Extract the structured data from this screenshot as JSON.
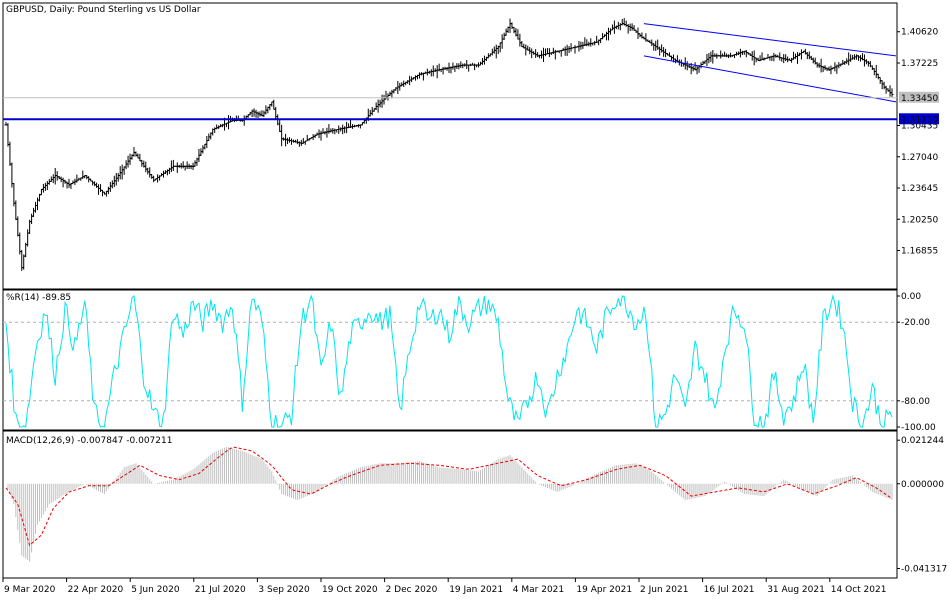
{
  "chart_data": {
    "type": "ohlc",
    "symbol_header": "GBPUSD, Daily:  Pound Sterling vs US Dollar",
    "price_axis_ticks": [
      "1.40620",
      "1.37225",
      "1.30435",
      "1.27040",
      "1.23645",
      "1.20250",
      "1.16855"
    ],
    "current_price_label": "1.33450",
    "current_price": 1.3345,
    "support_level_label": "1.31110",
    "support_level": 1.3111,
    "price_ylim": [
      1.13,
      1.432
    ],
    "x_axis_labels": [
      "9 Mar 2020",
      "22 Apr 2020",
      "5 Jun 2020",
      "21 Jul 2020",
      "3 Sep 2020",
      "19 Oct 2020",
      "2 Dec 2020",
      "19 Jan 2021",
      "4 Mar 2021",
      "19 Apr 2021",
      "2 Jun 2021",
      "16 Jul 2021",
      "31 Aug 2021",
      "14 Oct 2021"
    ],
    "price_path": [
      [
        0,
        1.305
      ],
      [
        4,
        1.22
      ],
      [
        8,
        1.15
      ],
      [
        12,
        1.2
      ],
      [
        18,
        1.235
      ],
      [
        25,
        1.25
      ],
      [
        32,
        1.24
      ],
      [
        40,
        1.25
      ],
      [
        50,
        1.23
      ],
      [
        57,
        1.25
      ],
      [
        65,
        1.275
      ],
      [
        75,
        1.245
      ],
      [
        85,
        1.26
      ],
      [
        95,
        1.26
      ],
      [
        105,
        1.3
      ],
      [
        115,
        1.31
      ],
      [
        120,
        1.31
      ],
      [
        125,
        1.32
      ],
      [
        130,
        1.315
      ],
      [
        135,
        1.33
      ],
      [
        140,
        1.29
      ],
      [
        150,
        1.285
      ],
      [
        158,
        1.295
      ],
      [
        168,
        1.3
      ],
      [
        180,
        1.305
      ],
      [
        188,
        1.325
      ],
      [
        198,
        1.345
      ],
      [
        210,
        1.36
      ],
      [
        220,
        1.365
      ],
      [
        232,
        1.37
      ],
      [
        240,
        1.37
      ],
      [
        250,
        1.39
      ],
      [
        256,
        1.415
      ],
      [
        262,
        1.39
      ],
      [
        270,
        1.38
      ],
      [
        280,
        1.385
      ],
      [
        290,
        1.39
      ],
      [
        300,
        1.395
      ],
      [
        308,
        1.41
      ],
      [
        313,
        1.415
      ],
      [
        318,
        1.41
      ],
      [
        323,
        1.4
      ],
      [
        330,
        1.39
      ],
      [
        340,
        1.375
      ],
      [
        350,
        1.365
      ],
      [
        358,
        1.38
      ],
      [
        368,
        1.38
      ],
      [
        375,
        1.385
      ],
      [
        382,
        1.375
      ],
      [
        390,
        1.38
      ],
      [
        398,
        1.375
      ],
      [
        405,
        1.385
      ],
      [
        412,
        1.37
      ],
      [
        418,
        1.365
      ],
      [
        425,
        1.372
      ],
      [
        432,
        1.38
      ],
      [
        438,
        1.372
      ],
      [
        442,
        1.36
      ],
      [
        446,
        1.346
      ],
      [
        450,
        1.338
      ]
    ],
    "price_channel": {
      "upper": [
        [
          324,
          1.415
        ],
        [
          450,
          1.38
        ]
      ],
      "lower": [
        [
          324,
          1.38
        ],
        [
          450,
          1.33
        ]
      ]
    },
    "williams_r": {
      "label": "%R(14) -89.85",
      "last_value": -89.85,
      "ticks": [
        "0.00",
        "-20.00",
        "-80.00",
        "-100.00"
      ],
      "levels": [
        -20,
        -80
      ],
      "path": [
        [
          0,
          -20
        ],
        [
          5,
          -95
        ],
        [
          10,
          -100
        ],
        [
          15,
          -40
        ],
        [
          20,
          -10
        ],
        [
          25,
          -60
        ],
        [
          30,
          -10
        ],
        [
          35,
          -40
        ],
        [
          40,
          -5
        ],
        [
          45,
          -90
        ],
        [
          50,
          -100
        ],
        [
          55,
          -60
        ],
        [
          60,
          -30
        ],
        [
          65,
          0
        ],
        [
          70,
          -60
        ],
        [
          75,
          -90
        ],
        [
          80,
          -95
        ],
        [
          85,
          -10
        ],
        [
          90,
          -30
        ],
        [
          95,
          -5
        ],
        [
          100,
          -20
        ],
        [
          105,
          -5
        ],
        [
          110,
          -20
        ],
        [
          115,
          -5
        ],
        [
          120,
          -80
        ],
        [
          125,
          0
        ],
        [
          130,
          -20
        ],
        [
          135,
          -95
        ],
        [
          140,
          -100
        ],
        [
          145,
          -90
        ],
        [
          150,
          -20
        ],
        [
          155,
          0
        ],
        [
          160,
          -60
        ],
        [
          165,
          -20
        ],
        [
          170,
          -80
        ],
        [
          175,
          -30
        ],
        [
          180,
          -20
        ],
        [
          185,
          -10
        ],
        [
          190,
          -20
        ],
        [
          195,
          -15
        ],
        [
          200,
          -90
        ],
        [
          205,
          -40
        ],
        [
          210,
          -5
        ],
        [
          215,
          -20
        ],
        [
          220,
          -10
        ],
        [
          225,
          -30
        ],
        [
          230,
          -5
        ],
        [
          235,
          -20
        ],
        [
          240,
          -10
        ],
        [
          245,
          -5
        ],
        [
          250,
          -20
        ],
        [
          255,
          -80
        ],
        [
          260,
          -100
        ],
        [
          265,
          -80
        ],
        [
          270,
          -60
        ],
        [
          275,
          -90
        ],
        [
          280,
          -60
        ],
        [
          285,
          -40
        ],
        [
          290,
          -10
        ],
        [
          295,
          -20
        ],
        [
          300,
          -40
        ],
        [
          305,
          -15
        ],
        [
          310,
          0
        ],
        [
          315,
          -5
        ],
        [
          320,
          -20
        ],
        [
          325,
          -10
        ],
        [
          330,
          -100
        ],
        [
          335,
          -90
        ],
        [
          340,
          -60
        ],
        [
          345,
          -90
        ],
        [
          350,
          -40
        ],
        [
          355,
          -60
        ],
        [
          360,
          -90
        ],
        [
          365,
          -40
        ],
        [
          370,
          -10
        ],
        [
          375,
          -20
        ],
        [
          380,
          -90
        ],
        [
          385,
          -100
        ],
        [
          390,
          -60
        ],
        [
          395,
          -90
        ],
        [
          400,
          -80
        ],
        [
          405,
          -50
        ],
        [
          410,
          -95
        ],
        [
          415,
          -20
        ],
        [
          420,
          0
        ],
        [
          425,
          -20
        ],
        [
          430,
          -80
        ],
        [
          435,
          -100
        ],
        [
          440,
          -70
        ],
        [
          445,
          -100
        ],
        [
          450,
          -89.85
        ]
      ]
    },
    "macd": {
      "label": "MACD(12,26,9) -0.007847 -0.007211",
      "main_last": -0.007847,
      "signal_last": -0.007211,
      "ticks": [
        "0.021244",
        "0.000000",
        "-0.041317"
      ],
      "ylim": [
        -0.0445,
        0.0228
      ],
      "histogram": [
        [
          0,
          0.0
        ],
        [
          4,
          -0.01
        ],
        [
          8,
          -0.035
        ],
        [
          12,
          -0.038
        ],
        [
          16,
          -0.02
        ],
        [
          22,
          -0.01
        ],
        [
          30,
          -0.005
        ],
        [
          40,
          0.0
        ],
        [
          50,
          -0.005
        ],
        [
          60,
          0.008
        ],
        [
          66,
          0.01
        ],
        [
          75,
          0.0
        ],
        [
          85,
          0.002
        ],
        [
          95,
          0.007
        ],
        [
          105,
          0.015
        ],
        [
          112,
          0.018
        ],
        [
          120,
          0.016
        ],
        [
          130,
          0.012
        ],
        [
          135,
          0.006
        ],
        [
          140,
          -0.005
        ],
        [
          148,
          -0.008
        ],
        [
          158,
          -0.004
        ],
        [
          168,
          0.003
        ],
        [
          180,
          0.008
        ],
        [
          190,
          0.01
        ],
        [
          200,
          0.01
        ],
        [
          210,
          0.011
        ],
        [
          220,
          0.008
        ],
        [
          232,
          0.007
        ],
        [
          240,
          0.006
        ],
        [
          250,
          0.012
        ],
        [
          256,
          0.014
        ],
        [
          262,
          0.008
        ],
        [
          270,
          0.0
        ],
        [
          280,
          -0.004
        ],
        [
          290,
          0.0
        ],
        [
          300,
          0.005
        ],
        [
          310,
          0.009
        ],
        [
          320,
          0.01
        ],
        [
          328,
          0.006
        ],
        [
          335,
          0.0
        ],
        [
          345,
          -0.008
        ],
        [
          355,
          -0.006
        ],
        [
          365,
          0.001
        ],
        [
          375,
          -0.005
        ],
        [
          385,
          -0.006
        ],
        [
          395,
          0.002
        ],
        [
          405,
          -0.003
        ],
        [
          412,
          -0.006
        ],
        [
          420,
          0.002
        ],
        [
          430,
          0.004
        ],
        [
          440,
          -0.004
        ],
        [
          450,
          -0.007847
        ]
      ],
      "signal": [
        [
          0,
          -0.002
        ],
        [
          6,
          -0.01
        ],
        [
          12,
          -0.03
        ],
        [
          18,
          -0.025
        ],
        [
          24,
          -0.012
        ],
        [
          32,
          -0.004
        ],
        [
          42,
          -0.001
        ],
        [
          52,
          -0.001
        ],
        [
          60,
          0.004
        ],
        [
          68,
          0.009
        ],
        [
          78,
          0.004
        ],
        [
          88,
          0.002
        ],
        [
          98,
          0.005
        ],
        [
          108,
          0.013
        ],
        [
          115,
          0.018
        ],
        [
          125,
          0.016
        ],
        [
          135,
          0.009
        ],
        [
          145,
          -0.003
        ],
        [
          155,
          -0.005
        ],
        [
          165,
          0.0
        ],
        [
          175,
          0.004
        ],
        [
          190,
          0.009
        ],
        [
          205,
          0.01
        ],
        [
          220,
          0.009
        ],
        [
          235,
          0.007
        ],
        [
          250,
          0.01
        ],
        [
          260,
          0.012
        ],
        [
          270,
          0.004
        ],
        [
          282,
          -0.001
        ],
        [
          295,
          0.002
        ],
        [
          310,
          0.007
        ],
        [
          322,
          0.009
        ],
        [
          335,
          0.004
        ],
        [
          348,
          -0.006
        ],
        [
          360,
          -0.004
        ],
        [
          372,
          -0.002
        ],
        [
          385,
          -0.004
        ],
        [
          397,
          0.0
        ],
        [
          410,
          -0.005
        ],
        [
          422,
          -0.001
        ],
        [
          432,
          0.003
        ],
        [
          442,
          -0.002
        ],
        [
          450,
          -0.007211
        ]
      ]
    },
    "colors": {
      "price_bars": "#000000",
      "support_line": "#0000cc",
      "channel": "#0000ff",
      "current_price_line": "#c0c0c0",
      "williams_r": "#00e5ee",
      "macd_histogram": "#c0c0c0",
      "macd_signal": "#ee0000",
      "support_label_bg": "#0000cc"
    }
  }
}
